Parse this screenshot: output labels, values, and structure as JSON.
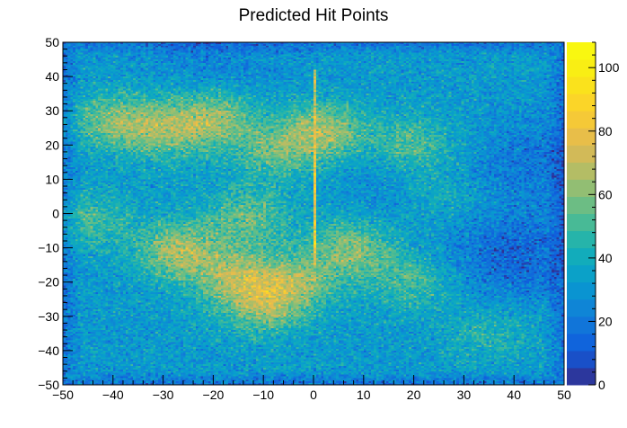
{
  "chart_data": {
    "type": "heatmap",
    "title": "Predicted Hit Points",
    "xlabel": "",
    "ylabel": "",
    "xlim": [
      -50,
      50
    ],
    "ylim": [
      -50,
      50
    ],
    "x_ticks": [
      -50,
      -40,
      -30,
      -20,
      -10,
      0,
      10,
      20,
      30,
      40,
      50
    ],
    "y_ticks": [
      -50,
      -40,
      -30,
      -20,
      -10,
      0,
      10,
      20,
      30,
      40,
      50
    ],
    "z_range": [
      0,
      108
    ],
    "z_ticks": [
      0,
      20,
      40,
      60,
      80,
      100
    ],
    "colormap": "parula",
    "baseline_counts": 32,
    "hotspots": [
      {
        "x": -40,
        "y": 27,
        "peak": 58
      },
      {
        "x": -30,
        "y": 24,
        "peak": 56
      },
      {
        "x": -20,
        "y": 28,
        "peak": 62
      },
      {
        "x": -8,
        "y": 18,
        "peak": 52
      },
      {
        "x": 2,
        "y": 24,
        "peak": 64
      },
      {
        "x": 20,
        "y": 20,
        "peak": 55
      },
      {
        "x": -45,
        "y": -2,
        "peak": 50
      },
      {
        "x": -27,
        "y": -11,
        "peak": 65
      },
      {
        "x": -15,
        "y": -19,
        "peak": 62
      },
      {
        "x": -10,
        "y": -28,
        "peak": 55
      },
      {
        "x": -3,
        "y": -20,
        "peak": 58
      },
      {
        "x": 8,
        "y": -10,
        "peak": 60
      },
      {
        "x": -13,
        "y": -1,
        "peak": 55
      },
      {
        "x": 25,
        "y": 5,
        "peak": 48
      },
      {
        "x": 20,
        "y": -20,
        "peak": 50
      },
      {
        "x": 35,
        "y": -35,
        "peak": 45
      }
    ],
    "cold_regions": [
      {
        "x": 40,
        "y": -13,
        "depth": 18
      },
      {
        "x": 20,
        "y": 8,
        "depth": 10
      },
      {
        "x": 45,
        "y": 15,
        "depth": 12
      },
      {
        "x": -20,
        "y": 45,
        "depth": 8
      }
    ],
    "vertical_ridge": {
      "x": 0.3,
      "y_min": -15,
      "y_max": 42,
      "peak": 108
    }
  }
}
